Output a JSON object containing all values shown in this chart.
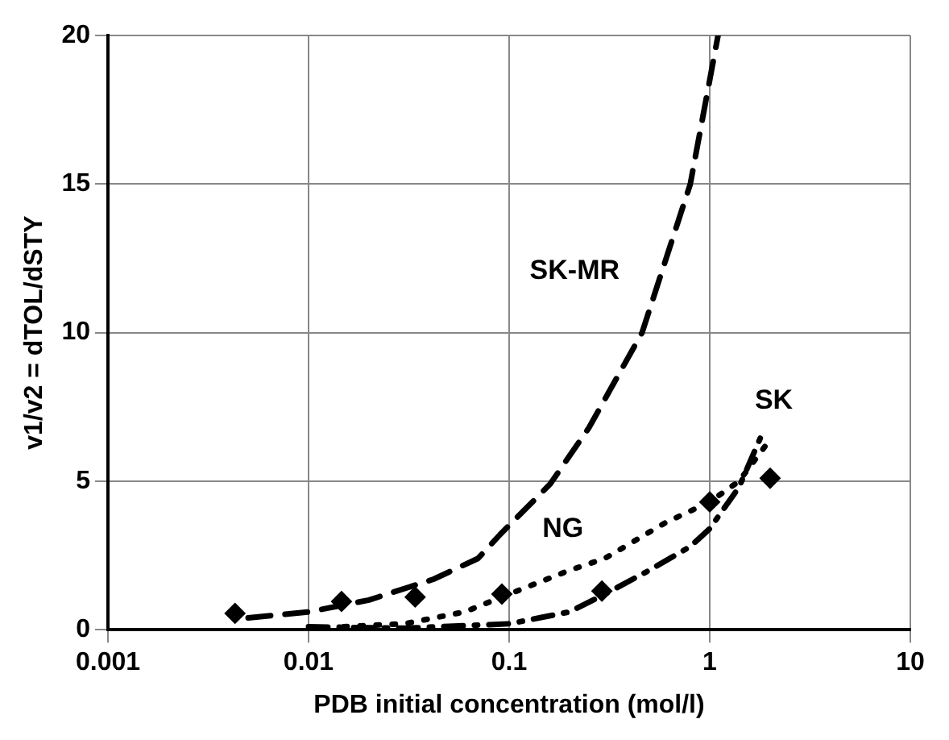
{
  "chart_data": {
    "type": "line",
    "xlabel": "PDB initial concentration (mol/l)",
    "ylabel": "v1/v2 = dTOL/dSTY",
    "log": "x",
    "grid": true,
    "legend": false,
    "xlim": [
      0.001,
      10
    ],
    "xticks": [
      0.001,
      0.01,
      0.1,
      1,
      10
    ],
    "ylim": [
      0,
      20
    ],
    "yticks": [
      0,
      5,
      10,
      15,
      20
    ],
    "series": [
      {
        "type": "scatter",
        "marker": "diamond",
        "color": "#000000",
        "x": [
          0.0043,
          0.0146,
          0.034,
          0.092,
          0.29,
          1.0,
          2.0
        ],
        "values": [
          0.55,
          0.95,
          1.1,
          1.2,
          1.3,
          4.3,
          5.1
        ]
      },
      {
        "name": "SK-MR",
        "line_style": "dashed",
        "marker": "none",
        "color": "#000000",
        "x": [
          0.005,
          0.01,
          0.02,
          0.042,
          0.07,
          0.09,
          0.16,
          0.25,
          0.46,
          0.8,
          1.1
        ],
        "values": [
          0.4,
          0.6,
          1.0,
          1.7,
          2.4,
          3.2,
          4.9,
          6.8,
          10,
          15,
          20
        ]
      },
      {
        "name": "NG",
        "line_style": "dotted",
        "marker": "none",
        "color": "#000000",
        "x": [
          0.015,
          0.03,
          0.06,
          0.1,
          0.2,
          0.3,
          0.6,
          1,
          1.4,
          2
        ],
        "values": [
          0.1,
          0.2,
          0.6,
          1.2,
          2.0,
          2.4,
          3.6,
          4.3,
          5.0,
          6.4
        ]
      },
      {
        "name": "SK",
        "line_style": "dashdot",
        "marker": "none",
        "color": "#000000",
        "x": [
          0.01,
          0.03,
          0.1,
          0.2,
          0.3,
          0.5,
          0.8,
          1,
          1.4,
          1.8
        ],
        "values": [
          0.1,
          0.05,
          0.2,
          0.6,
          1.2,
          2.0,
          2.8,
          3.4,
          4.8,
          6.5
        ]
      }
    ]
  }
}
